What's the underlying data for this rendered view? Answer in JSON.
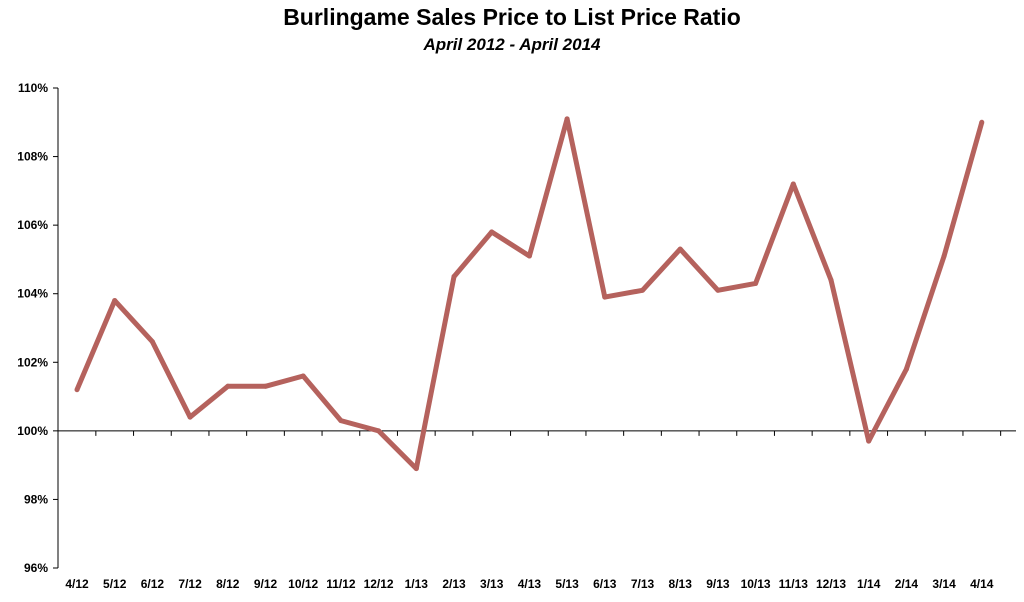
{
  "chart_data": {
    "type": "line",
    "title": "Burlingame Sales Price to List Price Ratio",
    "subtitle": "April 2012 - April 2014",
    "xlabel": "",
    "ylabel": "",
    "categories": [
      "4/12",
      "5/12",
      "6/12",
      "7/12",
      "8/12",
      "9/12",
      "10/12",
      "11/12",
      "12/12",
      "1/13",
      "2/13",
      "3/13",
      "4/13",
      "5/13",
      "6/13",
      "7/13",
      "8/13",
      "9/13",
      "10/13",
      "11/13",
      "12/13",
      "1/14",
      "2/14",
      "3/14",
      "4/14"
    ],
    "series": [
      {
        "values": [
          101.2,
          103.8,
          102.6,
          100.4,
          101.3,
          101.3,
          101.6,
          100.3,
          100.0,
          98.9,
          104.5,
          105.8,
          105.1,
          109.1,
          103.9,
          104.1,
          105.3,
          104.1,
          104.3,
          107.2,
          104.4,
          99.7,
          101.8,
          105.1,
          109.0
        ]
      }
    ],
    "ylim": [
      96,
      110
    ],
    "yticks": [
      "96%",
      "98%",
      "100%",
      "102%",
      "104%",
      "106%",
      "108%",
      "110%"
    ],
    "x_axis_crosses_at": 100,
    "grid": false,
    "legend": "none",
    "line_color": "#b5625d"
  }
}
